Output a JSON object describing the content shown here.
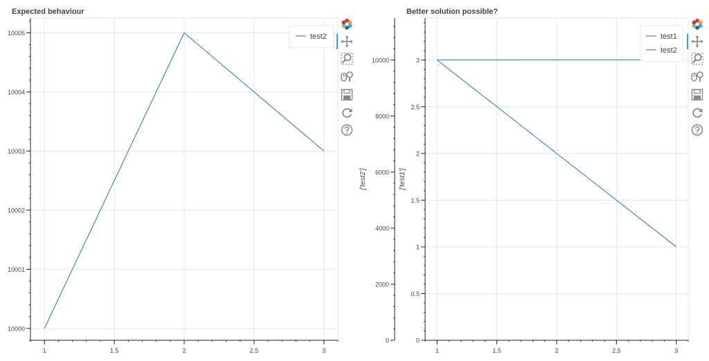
{
  "chart_data": [
    {
      "type": "line",
      "title": "Expected behaviour",
      "xlabel": "",
      "ylabel": "",
      "x": [
        1,
        2,
        3
      ],
      "xlim": [
        0.9,
        3.1
      ],
      "ylim": [
        9999.8,
        10005.25
      ],
      "xticks": [
        1,
        1.5,
        2,
        2.5,
        3
      ],
      "xtick_labels": [
        "1",
        "1.5",
        "2",
        "2.5",
        "3"
      ],
      "yticks": [
        10000,
        10001,
        10002,
        10003,
        10004,
        10005
      ],
      "ytick_labels": [
        "10000",
        "10001",
        "10002",
        "10003",
        "10004",
        "10005"
      ],
      "series": [
        {
          "name": "test2",
          "values": [
            10000,
            10005,
            10003
          ],
          "color": "#1f77b4"
        }
      ],
      "legend": "top-right",
      "grid": true
    },
    {
      "type": "line",
      "title": "Better solution possible?",
      "x": [
        1,
        2,
        3
      ],
      "xlim": [
        0.9,
        3.1
      ],
      "axes": [
        {
          "side": "left-outer",
          "label": "['test2']",
          "ylim": [
            0,
            11500
          ],
          "yticks": [
            0,
            2000,
            4000,
            6000,
            8000,
            10000
          ],
          "ytick_labels": [
            "0",
            "2000",
            "4000",
            "6000",
            "8000",
            "10000"
          ]
        },
        {
          "side": "left-inner",
          "label": "['test1']",
          "ylim": [
            0,
            3.45
          ],
          "yticks": [
            0,
            0.5,
            1,
            1.5,
            2,
            2.5,
            3
          ],
          "ytick_labels": [
            "0",
            "0.5",
            "1",
            "1.5",
            "2",
            "2.5",
            "3"
          ]
        }
      ],
      "xticks": [
        1,
        1.5,
        2,
        2.5,
        3
      ],
      "xtick_labels": [
        "1",
        "1.5",
        "2",
        "2.5",
        "3"
      ],
      "series": [
        {
          "name": "test1",
          "values": [
            3,
            2,
            1
          ],
          "axis": 1,
          "color": "#1f77b4"
        },
        {
          "name": "test2",
          "values": [
            10000,
            10005,
            10003
          ],
          "axis": 0,
          "color": "#1f77b4"
        }
      ],
      "legend": "top-right",
      "grid": true
    }
  ],
  "toolbar": {
    "tools": [
      "bokeh-logo-icon",
      "pan-icon",
      "box-zoom-icon",
      "wheel-zoom-icon",
      "save-icon",
      "reset-icon",
      "help-icon"
    ],
    "active": "pan-icon",
    "accent": "#26aae1"
  }
}
